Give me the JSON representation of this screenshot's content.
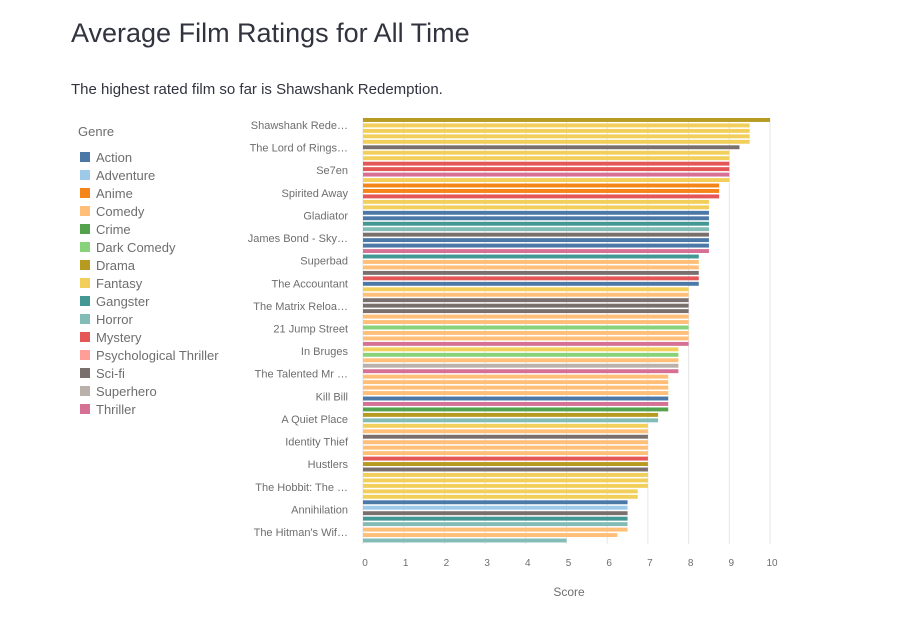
{
  "page": {
    "title": "Average Film Ratings for All Time",
    "subtitle": "The highest rated film so far is Shawshank Redemption."
  },
  "chart_data": {
    "type": "bar",
    "orientation": "horizontal",
    "xlabel": "Score",
    "ylabel": "",
    "xlim": [
      0,
      10
    ],
    "xticks": [
      "0",
      "1",
      "2",
      "3",
      "4",
      "5",
      "6",
      "7",
      "8",
      "9",
      "10"
    ],
    "grid": true,
    "legend": {
      "title": "Genre",
      "placement": "left",
      "items": [
        {
          "name": "Action",
          "color": "#4c78a8"
        },
        {
          "name": "Adventure",
          "color": "#9ecae9"
        },
        {
          "name": "Anime",
          "color": "#f58518"
        },
        {
          "name": "Comedy",
          "color": "#ffbf79"
        },
        {
          "name": "Crime",
          "color": "#54a24b"
        },
        {
          "name": "Dark Comedy",
          "color": "#88d27a"
        },
        {
          "name": "Drama",
          "color": "#b79a20"
        },
        {
          "name": "Fantasy",
          "color": "#f2cf5b"
        },
        {
          "name": "Gangster",
          "color": "#439894"
        },
        {
          "name": "Horror",
          "color": "#83bcb6"
        },
        {
          "name": "Mystery",
          "color": "#e45756"
        },
        {
          "name": "Psychological Thriller",
          "color": "#ff9d98"
        },
        {
          "name": "Sci-fi",
          "color": "#79706e"
        },
        {
          "name": "Superhero",
          "color": "#bab0ac"
        },
        {
          "name": "Thriller",
          "color": "#d67195"
        }
      ]
    },
    "visible_category_labels": [
      "Shawshank Rede…",
      "The Lord of Rings…",
      "Se7en",
      "Spirited Away",
      "Gladiator",
      "James Bond - Sky…",
      "Superbad",
      "The Accountant",
      "The Matrix Reloa…",
      "21 Jump Street",
      "In Bruges",
      "The Talented Mr …",
      "Kill Bill",
      "A Quiet Place",
      "Identity Thief",
      "Hustlers",
      "The Hobbit: The …",
      "Annihilation",
      "The Hitman's Wif…"
    ],
    "bars": [
      {
        "genre": "Drama",
        "value": 10.0
      },
      {
        "genre": "Fantasy",
        "value": 9.5
      },
      {
        "genre": "Fantasy",
        "value": 9.5
      },
      {
        "genre": "Fantasy",
        "value": 9.5
      },
      {
        "genre": "Fantasy",
        "value": 9.5
      },
      {
        "genre": "Sci-fi",
        "value": 9.25
      },
      {
        "genre": "Fantasy",
        "value": 9.0
      },
      {
        "genre": "Fantasy",
        "value": 9.0
      },
      {
        "genre": "Mystery",
        "value": 9.0
      },
      {
        "genre": "Mystery",
        "value": 9.0
      },
      {
        "genre": "Thriller",
        "value": 9.0
      },
      {
        "genre": "Fantasy",
        "value": 9.0
      },
      {
        "genre": "Anime",
        "value": 8.75
      },
      {
        "genre": "Anime",
        "value": 8.75
      },
      {
        "genre": "Mystery",
        "value": 8.75
      },
      {
        "genre": "Fantasy",
        "value": 8.5
      },
      {
        "genre": "Fantasy",
        "value": 8.5
      },
      {
        "genre": "Action",
        "value": 8.5
      },
      {
        "genre": "Action",
        "value": 8.5
      },
      {
        "genre": "Gangster",
        "value": 8.5
      },
      {
        "genre": "Horror",
        "value": 8.5
      },
      {
        "genre": "Sci-fi",
        "value": 8.5
      },
      {
        "genre": "Action",
        "value": 8.5
      },
      {
        "genre": "Action",
        "value": 8.5
      },
      {
        "genre": "Thriller",
        "value": 8.5
      },
      {
        "genre": "Gangster",
        "value": 8.25
      },
      {
        "genre": "Comedy",
        "value": 8.25
      },
      {
        "genre": "Comedy",
        "value": 8.25
      },
      {
        "genre": "Sci-fi",
        "value": 8.25
      },
      {
        "genre": "Mystery",
        "value": 8.25
      },
      {
        "genre": "Action",
        "value": 8.25
      },
      {
        "genre": "Fantasy",
        "value": 8.0
      },
      {
        "genre": "Comedy",
        "value": 8.0
      },
      {
        "genre": "Sci-fi",
        "value": 8.0
      },
      {
        "genre": "Sci-fi",
        "value": 8.0
      },
      {
        "genre": "Sci-fi",
        "value": 8.0
      },
      {
        "genre": "Comedy",
        "value": 8.0
      },
      {
        "genre": "Comedy",
        "value": 8.0
      },
      {
        "genre": "Dark Comedy",
        "value": 8.0
      },
      {
        "genre": "Comedy",
        "value": 8.0
      },
      {
        "genre": "Comedy",
        "value": 8.0
      },
      {
        "genre": "Thriller",
        "value": 8.0
      },
      {
        "genre": "Fantasy",
        "value": 7.75
      },
      {
        "genre": "Dark Comedy",
        "value": 7.75
      },
      {
        "genre": "Comedy",
        "value": 7.75
      },
      {
        "genre": "Superhero",
        "value": 7.75
      },
      {
        "genre": "Thriller",
        "value": 7.75
      },
      {
        "genre": "Comedy",
        "value": 7.5
      },
      {
        "genre": "Comedy",
        "value": 7.5
      },
      {
        "genre": "Comedy",
        "value": 7.5
      },
      {
        "genre": "Comedy",
        "value": 7.5
      },
      {
        "genre": "Action",
        "value": 7.5
      },
      {
        "genre": "Thriller",
        "value": 7.5
      },
      {
        "genre": "Crime",
        "value": 7.5
      },
      {
        "genre": "Drama",
        "value": 7.25
      },
      {
        "genre": "Horror",
        "value": 7.25
      },
      {
        "genre": "Fantasy",
        "value": 7.0
      },
      {
        "genre": "Comedy",
        "value": 7.0
      },
      {
        "genre": "Sci-fi",
        "value": 7.0
      },
      {
        "genre": "Comedy",
        "value": 7.0
      },
      {
        "genre": "Comedy",
        "value": 7.0
      },
      {
        "genre": "Comedy",
        "value": 7.0
      },
      {
        "genre": "Mystery",
        "value": 7.0
      },
      {
        "genre": "Drama",
        "value": 7.0
      },
      {
        "genre": "Sci-fi",
        "value": 7.0
      },
      {
        "genre": "Fantasy",
        "value": 7.0
      },
      {
        "genre": "Fantasy",
        "value": 7.0
      },
      {
        "genre": "Fantasy",
        "value": 7.0
      },
      {
        "genre": "Fantasy",
        "value": 6.75
      },
      {
        "genre": "Fantasy",
        "value": 6.75
      },
      {
        "genre": "Action",
        "value": 6.5
      },
      {
        "genre": "Adventure",
        "value": 6.5
      },
      {
        "genre": "Sci-fi",
        "value": 6.5
      },
      {
        "genre": "Gangster",
        "value": 6.5
      },
      {
        "genre": "Horror",
        "value": 6.5
      },
      {
        "genre": "Comedy",
        "value": 6.5
      },
      {
        "genre": "Comedy",
        "value": 6.25
      },
      {
        "genre": "Horror",
        "value": 5.0
      }
    ]
  }
}
